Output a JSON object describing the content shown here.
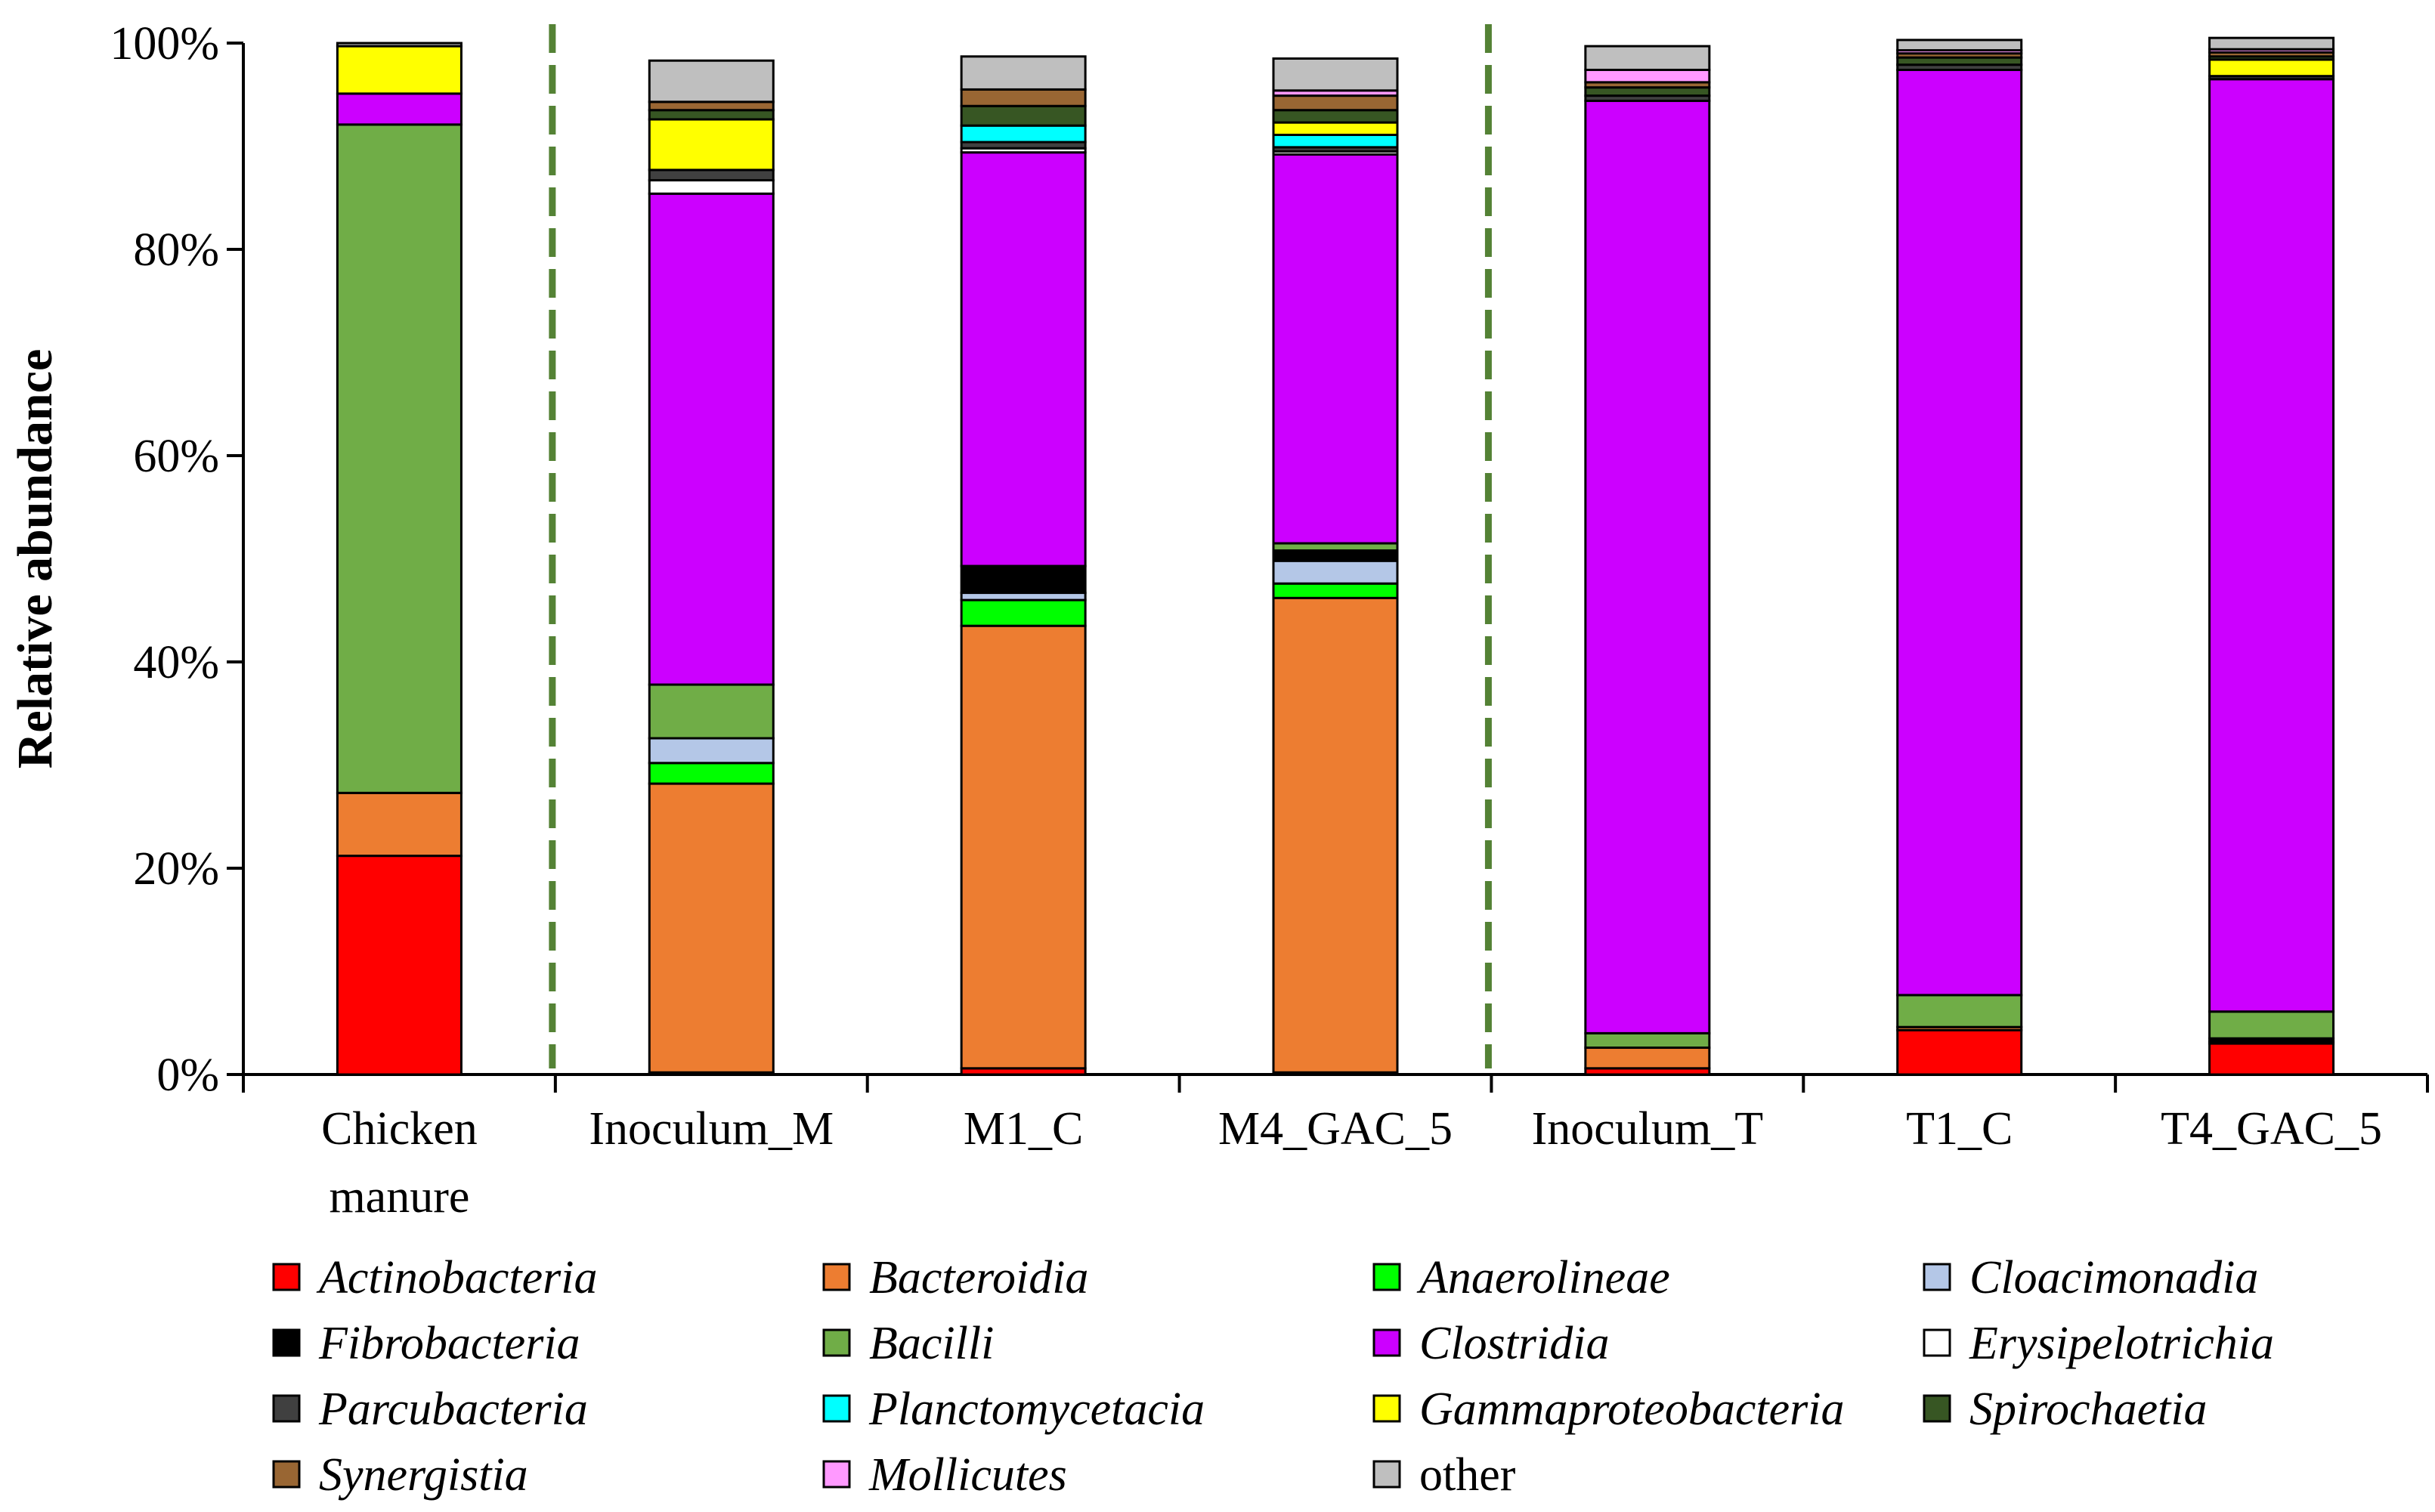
{
  "chart_data": {
    "type": "bar",
    "stacked": true,
    "ylabel": "Relative abundance",
    "ylim": [
      0,
      100
    ],
    "yticks": [
      "0%",
      "20%",
      "40%",
      "60%",
      "80%",
      "100%"
    ],
    "categories": [
      [
        "Chicken",
        "manure"
      ],
      [
        "Inoculum_M"
      ],
      [
        "M1_C"
      ],
      [
        "M4_GAC_5"
      ],
      [
        "Inoculum_T"
      ],
      [
        "T1_C"
      ],
      [
        "T4_GAC_5"
      ]
    ],
    "separators_after": [
      0,
      3
    ],
    "series": [
      {
        "name": "Actinobacteria",
        "italic": true,
        "color": "#FF0000",
        "values": [
          21.2,
          0.2,
          0.6,
          0.2,
          0.6,
          4.3,
          3.0
        ]
      },
      {
        "name": "Bacteroidia",
        "italic": true,
        "color": "#ED7D31",
        "values": [
          6.1,
          28.0,
          42.9,
          46.0,
          2.0,
          0.3,
          0.2
        ]
      },
      {
        "name": "Anaerolineae",
        "italic": true,
        "color": "#00FF00",
        "values": [
          0,
          2.0,
          2.5,
          1.4,
          0,
          0,
          0
        ]
      },
      {
        "name": "Cloacimonadia",
        "italic": true,
        "color": "#B4C7E7",
        "values": [
          0,
          2.4,
          0.7,
          2.2,
          0,
          0,
          0
        ]
      },
      {
        "name": "Fibrobacteria",
        "italic": true,
        "color": "#000000",
        "values": [
          0,
          0,
          2.6,
          1.0,
          0,
          0,
          0.3
        ]
      },
      {
        "name": "Bacilli",
        "italic": true,
        "color": "#70AD47",
        "values": [
          64.8,
          5.2,
          0,
          0.7,
          1.4,
          3.1,
          2.6
        ]
      },
      {
        "name": "Clostridia",
        "italic": true,
        "color": "#CC00FF",
        "values": [
          3.0,
          47.6,
          40.1,
          37.7,
          90.4,
          89.7,
          90.4
        ]
      },
      {
        "name": "Erysipelotrichia",
        "italic": true,
        "color": "#FFFFFF",
        "values": [
          0,
          1.3,
          0.4,
          0.3,
          0,
          0,
          0
        ]
      },
      {
        "name": "Parcubacteria",
        "italic": true,
        "color": "#404040",
        "values": [
          0,
          1.0,
          0.6,
          0.4,
          0.5,
          0.5,
          0.3
        ]
      },
      {
        "name": "Planctomycetacia",
        "italic": true,
        "color": "#00FFFF",
        "values": [
          0,
          0,
          1.6,
          1.2,
          0,
          0,
          0
        ]
      },
      {
        "name": "Gammaproteobacteria",
        "italic": true,
        "color": "#FFFF00",
        "values": [
          4.6,
          4.9,
          0,
          1.2,
          0,
          0,
          1.6
        ]
      },
      {
        "name": "Spirochaetia",
        "italic": true,
        "color": "#375623",
        "values": [
          0,
          0.9,
          1.9,
          1.2,
          0.8,
          0.7,
          0.3
        ]
      },
      {
        "name": "Synergistia",
        "italic": true,
        "color": "#996633",
        "values": [
          0,
          0.8,
          1.6,
          1.4,
          0.5,
          0.4,
          0.4
        ]
      },
      {
        "name": "Mollicutes",
        "italic": true,
        "color": "#FF99FF",
        "values": [
          0,
          0,
          0,
          0.5,
          1.2,
          0.3,
          0.3
        ]
      },
      {
        "name": "other",
        "italic": false,
        "color": "#BFBFBF",
        "values": [
          0.3,
          4.0,
          3.2,
          3.1,
          2.3,
          1.0,
          1.1
        ]
      }
    ]
  }
}
